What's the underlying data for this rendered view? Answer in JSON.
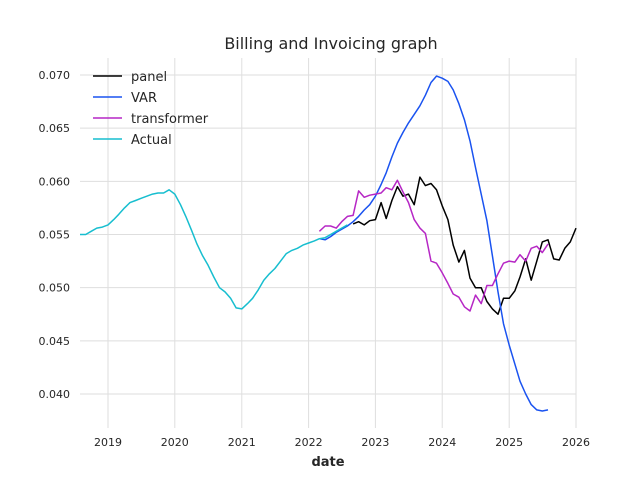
{
  "chart_data": {
    "type": "line",
    "title": "Billing and Invoicing graph",
    "xlabel": "date",
    "ylabel": "",
    "x_axis_type": "date",
    "xlim": [
      "2018-08-01",
      "2026-01-01"
    ],
    "ylim": [
      0.0368,
      0.0716
    ],
    "grid": true,
    "legend_position": "top-left",
    "x_ticks": [
      {
        "date": "2019-01-01",
        "label": "2019"
      },
      {
        "date": "2020-01-01",
        "label": "2020"
      },
      {
        "date": "2021-01-01",
        "label": "2021"
      },
      {
        "date": "2022-01-01",
        "label": "2022"
      },
      {
        "date": "2023-01-01",
        "label": "2023"
      },
      {
        "date": "2024-01-01",
        "label": "2024"
      },
      {
        "date": "2025-01-01",
        "label": "2025"
      },
      {
        "date": "2026-01-01",
        "label": "2026"
      }
    ],
    "y_ticks": [
      {
        "value": 0.04,
        "label": "0.040"
      },
      {
        "value": 0.045,
        "label": "0.045"
      },
      {
        "value": 0.05,
        "label": "0.050"
      },
      {
        "value": 0.055,
        "label": "0.055"
      },
      {
        "value": 0.06,
        "label": "0.060"
      },
      {
        "value": 0.065,
        "label": "0.065"
      },
      {
        "value": 0.07,
        "label": "0.070"
      }
    ],
    "series": [
      {
        "name": "panel",
        "color": "#000000",
        "points": [
          [
            "2022-09-01",
            0.056
          ],
          [
            "2022-10-01",
            0.0562
          ],
          [
            "2022-11-01",
            0.0559
          ],
          [
            "2022-12-01",
            0.0563
          ],
          [
            "2023-01-01",
            0.0564
          ],
          [
            "2023-02-01",
            0.058
          ],
          [
            "2023-03-01",
            0.0565
          ],
          [
            "2023-04-01",
            0.0582
          ],
          [
            "2023-05-01",
            0.0595
          ],
          [
            "2023-06-01",
            0.0586
          ],
          [
            "2023-07-01",
            0.0588
          ],
          [
            "2023-08-01",
            0.0578
          ],
          [
            "2023-09-01",
            0.0604
          ],
          [
            "2023-10-01",
            0.0596
          ],
          [
            "2023-11-01",
            0.0598
          ],
          [
            "2023-12-01",
            0.0592
          ],
          [
            "2024-01-01",
            0.0577
          ],
          [
            "2024-02-01",
            0.0564
          ],
          [
            "2024-03-01",
            0.054
          ],
          [
            "2024-04-01",
            0.0524
          ],
          [
            "2024-05-01",
            0.0535
          ],
          [
            "2024-06-01",
            0.0509
          ],
          [
            "2024-07-01",
            0.05
          ],
          [
            "2024-08-01",
            0.05
          ],
          [
            "2024-09-01",
            0.0487
          ],
          [
            "2024-10-01",
            0.048
          ],
          [
            "2024-11-01",
            0.0475
          ],
          [
            "2024-12-01",
            0.049
          ],
          [
            "2025-01-01",
            0.049
          ],
          [
            "2025-02-01",
            0.0497
          ],
          [
            "2025-03-01",
            0.051
          ],
          [
            "2025-04-01",
            0.0527
          ],
          [
            "2025-05-01",
            0.0507
          ],
          [
            "2025-06-01",
            0.0525
          ],
          [
            "2025-07-01",
            0.0543
          ],
          [
            "2025-08-01",
            0.0545
          ],
          [
            "2025-09-01",
            0.0527
          ],
          [
            "2025-10-01",
            0.0526
          ],
          [
            "2025-11-01",
            0.0537
          ],
          [
            "2025-12-01",
            0.0543
          ],
          [
            "2026-01-01",
            0.0556
          ]
        ]
      },
      {
        "name": "VAR",
        "color": "#1a53f0",
        "points": [
          [
            "2022-03-01",
            0.0546
          ],
          [
            "2022-04-01",
            0.0545
          ],
          [
            "2022-05-01",
            0.0548
          ],
          [
            "2022-06-01",
            0.0552
          ],
          [
            "2022-07-01",
            0.0555
          ],
          [
            "2022-08-01",
            0.0558
          ],
          [
            "2022-09-01",
            0.0562
          ],
          [
            "2022-10-01",
            0.0567
          ],
          [
            "2022-11-01",
            0.0573
          ],
          [
            "2022-12-01",
            0.0578
          ],
          [
            "2023-01-01",
            0.0586
          ],
          [
            "2023-02-01",
            0.0597
          ],
          [
            "2023-03-01",
            0.0608
          ],
          [
            "2023-04-01",
            0.0623
          ],
          [
            "2023-05-01",
            0.0636
          ],
          [
            "2023-06-01",
            0.0646
          ],
          [
            "2023-07-01",
            0.0655
          ],
          [
            "2023-08-01",
            0.0663
          ],
          [
            "2023-09-01",
            0.0671
          ],
          [
            "2023-10-01",
            0.0681
          ],
          [
            "2023-11-01",
            0.0693
          ],
          [
            "2023-12-01",
            0.0699
          ],
          [
            "2024-01-01",
            0.0697
          ],
          [
            "2024-02-01",
            0.0694
          ],
          [
            "2024-03-01",
            0.0686
          ],
          [
            "2024-04-01",
            0.0673
          ],
          [
            "2024-05-01",
            0.0658
          ],
          [
            "2024-06-01",
            0.0638
          ],
          [
            "2024-07-01",
            0.0613
          ],
          [
            "2024-08-01",
            0.0588
          ],
          [
            "2024-09-01",
            0.0563
          ],
          [
            "2024-10-01",
            0.053
          ],
          [
            "2024-11-01",
            0.0496
          ],
          [
            "2024-12-01",
            0.0466
          ],
          [
            "2025-01-01",
            0.0446
          ],
          [
            "2025-02-01",
            0.0428
          ],
          [
            "2025-03-01",
            0.0412
          ],
          [
            "2025-04-01",
            0.04
          ],
          [
            "2025-05-01",
            0.039
          ],
          [
            "2025-06-01",
            0.0385
          ],
          [
            "2025-07-01",
            0.0384
          ],
          [
            "2025-08-01",
            0.0385
          ]
        ]
      },
      {
        "name": "transformer",
        "color": "#b627c5",
        "points": [
          [
            "2022-03-01",
            0.0553
          ],
          [
            "2022-04-01",
            0.0558
          ],
          [
            "2022-05-01",
            0.0558
          ],
          [
            "2022-06-01",
            0.0556
          ],
          [
            "2022-07-01",
            0.0562
          ],
          [
            "2022-08-01",
            0.0567
          ],
          [
            "2022-09-01",
            0.0568
          ],
          [
            "2022-10-01",
            0.0591
          ],
          [
            "2022-11-01",
            0.0585
          ],
          [
            "2022-12-01",
            0.0587
          ],
          [
            "2023-01-01",
            0.0588
          ],
          [
            "2023-02-01",
            0.0589
          ],
          [
            "2023-03-01",
            0.0594
          ],
          [
            "2023-04-01",
            0.0592
          ],
          [
            "2023-05-01",
            0.0601
          ],
          [
            "2023-06-01",
            0.059
          ],
          [
            "2023-07-01",
            0.058
          ],
          [
            "2023-08-01",
            0.0564
          ],
          [
            "2023-09-01",
            0.0556
          ],
          [
            "2023-10-01",
            0.0551
          ],
          [
            "2023-11-01",
            0.0525
          ],
          [
            "2023-12-01",
            0.0523
          ],
          [
            "2024-01-01",
            0.0514
          ],
          [
            "2024-02-01",
            0.0504
          ],
          [
            "2024-03-01",
            0.0494
          ],
          [
            "2024-04-01",
            0.0491
          ],
          [
            "2024-05-01",
            0.0482
          ],
          [
            "2024-06-01",
            0.0478
          ],
          [
            "2024-07-01",
            0.0493
          ],
          [
            "2024-08-01",
            0.0485
          ],
          [
            "2024-09-01",
            0.0502
          ],
          [
            "2024-10-01",
            0.0502
          ],
          [
            "2024-11-01",
            0.0513
          ],
          [
            "2024-12-01",
            0.0523
          ],
          [
            "2025-01-01",
            0.0525
          ],
          [
            "2025-02-01",
            0.0524
          ],
          [
            "2025-03-01",
            0.0531
          ],
          [
            "2025-04-01",
            0.0525
          ],
          [
            "2025-05-01",
            0.0537
          ],
          [
            "2025-06-01",
            0.0539
          ],
          [
            "2025-07-01",
            0.0533
          ],
          [
            "2025-08-01",
            0.0541
          ]
        ]
      },
      {
        "name": "Actual",
        "color": "#17becf",
        "points": [
          [
            "2018-08-01",
            0.055
          ],
          [
            "2018-09-01",
            0.055
          ],
          [
            "2018-10-01",
            0.0553
          ],
          [
            "2018-11-01",
            0.0556
          ],
          [
            "2018-12-01",
            0.0557
          ],
          [
            "2019-01-01",
            0.0559
          ],
          [
            "2019-02-01",
            0.0564
          ],
          [
            "2019-03-01",
            0.0569
          ],
          [
            "2019-04-01",
            0.0575
          ],
          [
            "2019-05-01",
            0.058
          ],
          [
            "2019-06-01",
            0.0582
          ],
          [
            "2019-07-01",
            0.0584
          ],
          [
            "2019-08-01",
            0.0586
          ],
          [
            "2019-09-01",
            0.0588
          ],
          [
            "2019-10-01",
            0.0589
          ],
          [
            "2019-11-01",
            0.0589
          ],
          [
            "2019-12-01",
            0.0592
          ],
          [
            "2020-01-01",
            0.0588
          ],
          [
            "2020-02-01",
            0.0578
          ],
          [
            "2020-03-01",
            0.0567
          ],
          [
            "2020-04-01",
            0.0554
          ],
          [
            "2020-05-01",
            0.0541
          ],
          [
            "2020-06-01",
            0.053
          ],
          [
            "2020-07-01",
            0.0521
          ],
          [
            "2020-08-01",
            0.051
          ],
          [
            "2020-09-01",
            0.05
          ],
          [
            "2020-10-01",
            0.0496
          ],
          [
            "2020-11-01",
            0.049
          ],
          [
            "2020-12-01",
            0.0481
          ],
          [
            "2021-01-01",
            0.048
          ],
          [
            "2021-02-01",
            0.0485
          ],
          [
            "2021-03-01",
            0.049
          ],
          [
            "2021-04-01",
            0.0498
          ],
          [
            "2021-05-01",
            0.0507
          ],
          [
            "2021-06-01",
            0.0513
          ],
          [
            "2021-07-01",
            0.0518
          ],
          [
            "2021-08-01",
            0.0525
          ],
          [
            "2021-09-01",
            0.0532
          ],
          [
            "2021-10-01",
            0.0535
          ],
          [
            "2021-11-01",
            0.0537
          ],
          [
            "2021-12-01",
            0.054
          ],
          [
            "2022-01-01",
            0.0542
          ],
          [
            "2022-02-01",
            0.0544
          ],
          [
            "2022-03-01",
            0.0546
          ],
          [
            "2022-04-01",
            0.0547
          ],
          [
            "2022-05-01",
            0.055
          ],
          [
            "2022-06-01",
            0.0553
          ],
          [
            "2022-07-01",
            0.0556
          ],
          [
            "2022-08-01",
            0.0559
          ]
        ]
      }
    ]
  }
}
